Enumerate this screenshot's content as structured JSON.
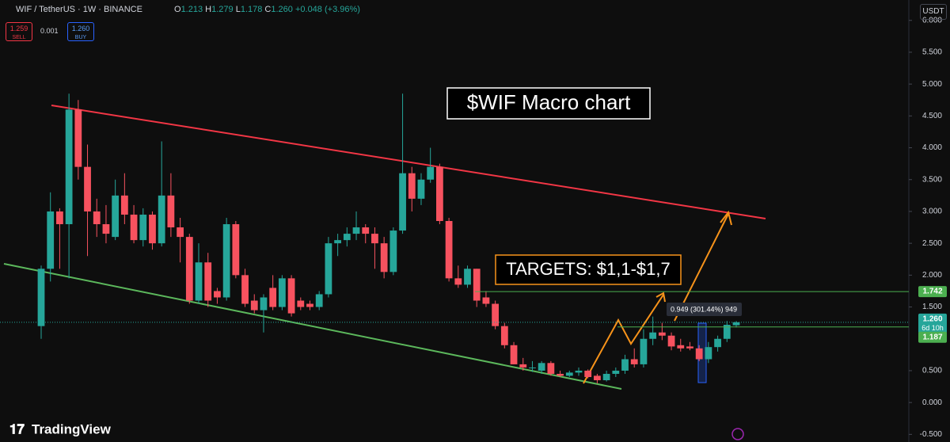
{
  "header": {
    "symbol": "WIF / TetherUS · 1W · BINANCE",
    "ohlc": [
      "O",
      "1.213",
      "H",
      "1.279",
      "L",
      "1.178",
      "C",
      "1.260"
    ],
    "change": "+0.048 (+3.96%)",
    "sell_price": "1.259",
    "sell": "SELL",
    "spread": "0.001",
    "buy_price": "1.260",
    "buy": "BUY",
    "currency": "USDT"
  },
  "chart_data": {
    "type": "candlestick",
    "title": "$WIF Macro chart",
    "annotations": [
      "TARGETS: $1,1-$1,7",
      "0.949 (301.44%) 949"
    ],
    "up_color": "#26a69a",
    "down_color": "#f7525f",
    "open": [
      1.2,
      2.1,
      3.0,
      2.8,
      4.6,
      3.7,
      3.0,
      2.8,
      2.6,
      3.25,
      2.95,
      2.55,
      2.95,
      2.5,
      3.25,
      2.75,
      2.6,
      1.6,
      2.2,
      1.75,
      1.65,
      2.8,
      2.0,
      1.6,
      1.45,
      1.8,
      1.5,
      1.95,
      1.6,
      1.55,
      1.5,
      1.7,
      2.5,
      2.55,
      2.65,
      2.75,
      2.65,
      2.5,
      2.05,
      2.7,
      3.6,
      3.2,
      3.5,
      3.7,
      2.85,
      1.95,
      1.85,
      2.1,
      1.65,
      1.55,
      1.2,
      0.9,
      0.6,
      0.55,
      0.5,
      0.62,
      0.45,
      0.42,
      0.47,
      0.5,
      0.42,
      0.35,
      0.45,
      0.5,
      0.68,
      0.6,
      1.0,
      1.1,
      1.05,
      0.9,
      0.88,
      0.85,
      0.68,
      0.87,
      1.0,
      1.213
    ],
    "high": [
      2.15,
      3.3,
      3.05,
      4.85,
      4.75,
      4.05,
      3.2,
      3.1,
      3.5,
      3.6,
      3.1,
      3.05,
      3.0,
      4.1,
      3.6,
      2.9,
      2.65,
      2.5,
      2.35,
      1.8,
      2.9,
      2.85,
      2.1,
      1.7,
      1.7,
      2.0,
      2.0,
      2.0,
      1.65,
      1.6,
      1.75,
      2.6,
      2.65,
      2.75,
      3.0,
      2.8,
      2.75,
      2.6,
      2.75,
      4.85,
      3.7,
      3.6,
      4.0,
      3.75,
      2.9,
      2.15,
      2.15,
      2.1,
      1.75,
      1.6,
      1.25,
      0.95,
      0.7,
      0.65,
      0.65,
      0.65,
      0.5,
      0.5,
      0.55,
      0.52,
      0.45,
      0.5,
      0.55,
      0.75,
      0.85,
      1.15,
      1.35,
      1.25,
      1.1,
      1.0,
      0.95,
      0.9,
      0.95,
      1.05,
      1.28,
      1.279
    ],
    "low": [
      1.0,
      1.9,
      2.1,
      1.95,
      3.5,
      2.3,
      2.6,
      2.5,
      2.55,
      2.8,
      2.5,
      2.45,
      2.4,
      2.45,
      2.6,
      2.2,
      1.55,
      1.55,
      1.5,
      1.55,
      1.6,
      1.95,
      1.5,
      1.4,
      1.1,
      1.45,
      1.45,
      1.35,
      1.45,
      1.45,
      1.45,
      1.65,
      2.3,
      2.45,
      2.55,
      2.5,
      2.1,
      1.95,
      2.0,
      2.65,
      3.0,
      3.1,
      3.45,
      2.8,
      1.9,
      1.8,
      1.8,
      1.5,
      1.5,
      1.15,
      0.85,
      0.6,
      0.5,
      0.48,
      0.45,
      0.42,
      0.4,
      0.4,
      0.42,
      0.38,
      0.3,
      0.33,
      0.4,
      0.45,
      0.55,
      0.55,
      0.9,
      0.98,
      0.82,
      0.8,
      0.82,
      0.65,
      0.62,
      0.8,
      0.95,
      1.178
    ],
    "close": [
      2.1,
      3.0,
      2.8,
      4.6,
      3.7,
      3.0,
      2.8,
      2.65,
      3.25,
      2.95,
      2.55,
      2.95,
      2.5,
      3.25,
      2.75,
      2.6,
      1.6,
      2.2,
      1.6,
      1.65,
      2.8,
      2.0,
      1.55,
      1.45,
      1.65,
      1.5,
      1.95,
      1.4,
      1.5,
      1.5,
      1.7,
      2.5,
      2.55,
      2.65,
      2.75,
      2.65,
      2.5,
      2.05,
      2.7,
      3.6,
      3.2,
      3.5,
      3.7,
      2.85,
      1.95,
      1.85,
      2.1,
      1.6,
      1.55,
      1.2,
      0.9,
      0.6,
      0.55,
      0.55,
      0.62,
      0.45,
      0.42,
      0.47,
      0.5,
      0.4,
      0.35,
      0.45,
      0.5,
      0.68,
      0.6,
      1.0,
      1.1,
      1.05,
      0.88,
      0.85,
      0.85,
      0.68,
      0.87,
      1.0,
      1.22,
      1.26
    ],
    "ylim": [
      -0.62,
      6.32
    ],
    "yticks": [
      {
        "value": 6,
        "label": "6.000"
      },
      {
        "value": 5.5,
        "label": "5.500"
      },
      {
        "value": 5,
        "label": "5.000"
      },
      {
        "value": 4.5,
        "label": "4.500"
      },
      {
        "value": 4,
        "label": "4.000"
      },
      {
        "value": 3.5,
        "label": "3.500"
      },
      {
        "value": 3,
        "label": "3.000"
      },
      {
        "value": 2.5,
        "label": "2.500"
      },
      {
        "value": 2,
        "label": "2.000"
      },
      {
        "value": 1.5,
        "label": "1.500"
      },
      {
        "value": 0.5,
        "label": "0.500"
      },
      {
        "value": 0,
        "label": "0.000"
      },
      {
        "value": -0.5,
        "label": "-0.500"
      }
    ],
    "price_lines": [
      1.742,
      {
        "value": 1.26,
        "label": "1.260"
      },
      1.187
    ],
    "price_line_colors": [
      "#4caf50",
      "#26a69a",
      "#4caf50"
    ],
    "countdown": "6d 10h"
  },
  "footer": {
    "brand": "TradingView"
  }
}
